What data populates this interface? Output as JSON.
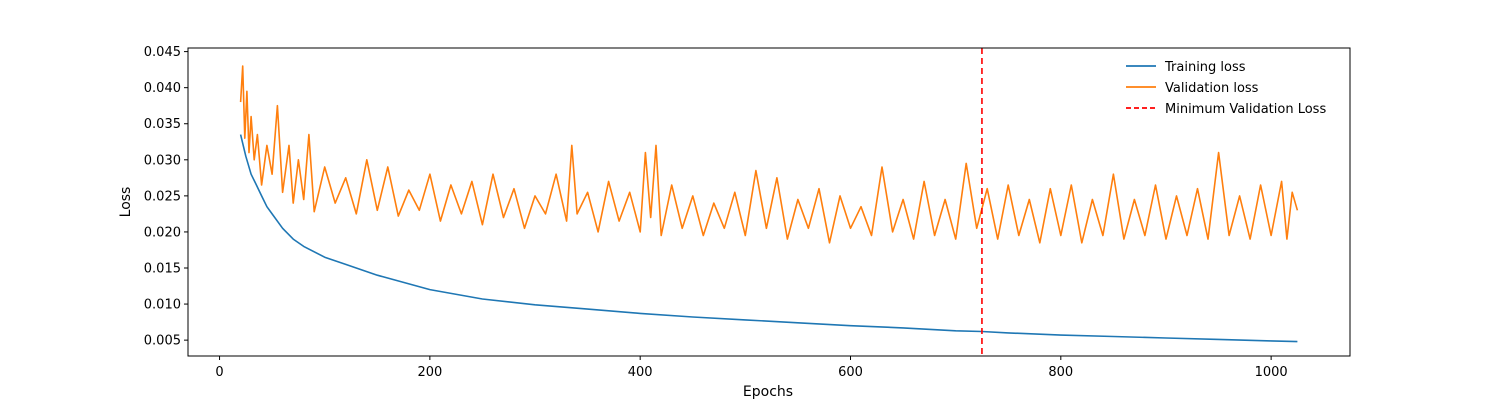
{
  "chart_data": {
    "type": "line",
    "title": "",
    "xlabel": "Epochs",
    "ylabel": "Loss",
    "xlim": [
      -30,
      1075
    ],
    "ylim": [
      0.0028,
      0.0455
    ],
    "xticks": [
      0,
      200,
      400,
      600,
      800,
      1000
    ],
    "yticks": [
      0.005,
      0.01,
      0.015,
      0.02,
      0.025,
      0.03,
      0.035,
      0.04,
      0.045
    ],
    "xtick_labels": [
      "0",
      "200",
      "400",
      "600",
      "800",
      "1000"
    ],
    "ytick_labels": [
      "0.005",
      "0.010",
      "0.015",
      "0.020",
      "0.025",
      "0.030",
      "0.035",
      "0.040",
      "0.045"
    ],
    "grid": false,
    "legend_position": "top-right",
    "series": [
      {
        "name": "Training loss",
        "color": "#1f77b4",
        "style": "solid",
        "x": [
          20,
          25,
          30,
          35,
          40,
          45,
          50,
          60,
          70,
          80,
          100,
          120,
          150,
          200,
          250,
          300,
          350,
          400,
          450,
          500,
          550,
          600,
          650,
          700,
          725,
          750,
          800,
          850,
          900,
          950,
          1000,
          1025
        ],
        "values": [
          0.0335,
          0.0305,
          0.028,
          0.0265,
          0.025,
          0.0235,
          0.0225,
          0.0205,
          0.019,
          0.018,
          0.0165,
          0.0155,
          0.014,
          0.012,
          0.0107,
          0.0099,
          0.0093,
          0.0087,
          0.0082,
          0.0078,
          0.0074,
          0.007,
          0.0067,
          0.0063,
          0.0062,
          0.006,
          0.0057,
          0.0055,
          0.0053,
          0.0051,
          0.0049,
          0.0048
        ]
      },
      {
        "name": "Validation loss",
        "color": "#ff7f0e",
        "style": "solid",
        "x": [
          20,
          22,
          24,
          26,
          28,
          30,
          33,
          36,
          40,
          45,
          50,
          55,
          60,
          66,
          70,
          75,
          80,
          85,
          90,
          100,
          110,
          120,
          130,
          140,
          150,
          160,
          170,
          180,
          190,
          200,
          210,
          220,
          230,
          240,
          250,
          260,
          270,
          280,
          290,
          300,
          310,
          320,
          330,
          335,
          340,
          350,
          360,
          370,
          380,
          390,
          400,
          405,
          410,
          415,
          420,
          430,
          440,
          450,
          460,
          470,
          480,
          490,
          500,
          510,
          520,
          530,
          540,
          550,
          560,
          570,
          580,
          590,
          600,
          610,
          620,
          630,
          640,
          650,
          660,
          670,
          680,
          690,
          700,
          710,
          720,
          730,
          740,
          750,
          760,
          770,
          780,
          790,
          800,
          810,
          820,
          830,
          840,
          850,
          860,
          870,
          880,
          890,
          900,
          910,
          920,
          930,
          940,
          950,
          960,
          970,
          980,
          990,
          1000,
          1010,
          1015,
          1020,
          1025
        ],
        "values": [
          0.038,
          0.043,
          0.033,
          0.0395,
          0.031,
          0.036,
          0.03,
          0.0335,
          0.0265,
          0.032,
          0.028,
          0.0375,
          0.0255,
          0.032,
          0.024,
          0.03,
          0.0245,
          0.0335,
          0.0228,
          0.029,
          0.024,
          0.0275,
          0.0225,
          0.03,
          0.023,
          0.029,
          0.0222,
          0.0258,
          0.023,
          0.028,
          0.0215,
          0.0265,
          0.0225,
          0.027,
          0.021,
          0.028,
          0.022,
          0.026,
          0.0205,
          0.025,
          0.0225,
          0.028,
          0.0215,
          0.032,
          0.0225,
          0.0255,
          0.02,
          0.027,
          0.0215,
          0.0255,
          0.02,
          0.031,
          0.022,
          0.032,
          0.0195,
          0.0265,
          0.0205,
          0.025,
          0.0195,
          0.024,
          0.0205,
          0.0255,
          0.0195,
          0.0285,
          0.0205,
          0.0275,
          0.019,
          0.0245,
          0.0205,
          0.026,
          0.0185,
          0.025,
          0.0205,
          0.0235,
          0.0195,
          0.029,
          0.02,
          0.0245,
          0.019,
          0.027,
          0.0195,
          0.0245,
          0.019,
          0.0295,
          0.0205,
          0.026,
          0.019,
          0.0265,
          0.0195,
          0.0245,
          0.0185,
          0.026,
          0.0195,
          0.0265,
          0.0185,
          0.0245,
          0.0195,
          0.028,
          0.019,
          0.0245,
          0.0195,
          0.0265,
          0.019,
          0.025,
          0.0195,
          0.026,
          0.019,
          0.031,
          0.0195,
          0.025,
          0.019,
          0.0265,
          0.0195,
          0.027,
          0.019,
          0.0255,
          0.023
        ]
      }
    ],
    "vlines": [
      {
        "name": "Minimum Validation Loss",
        "x": 725,
        "color": "#ff0000",
        "style": "dashed"
      }
    ]
  }
}
